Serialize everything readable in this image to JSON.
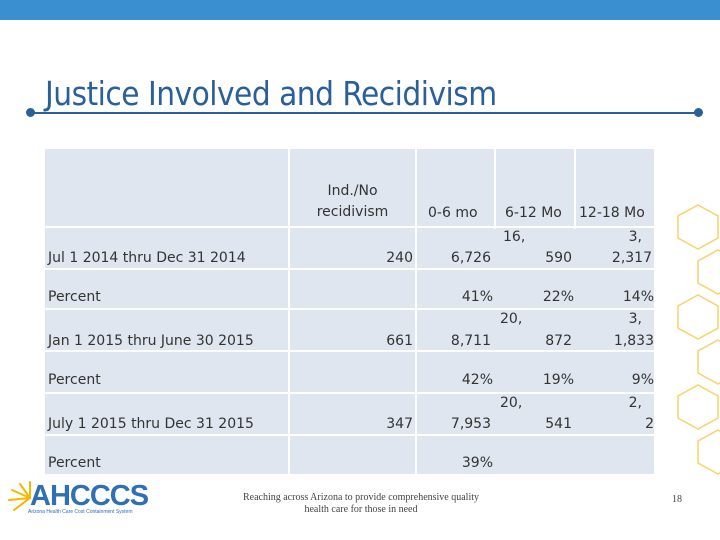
{
  "title": "Justice Involved and Recidivism",
  "table": {
    "headers": [
      "Ind./No recidivism",
      "0-6 mo",
      "6-12 Mo",
      "12-18 Mo"
    ],
    "rows": [
      {
        "label": "Jul 1 2014 thru Dec 31 2014",
        "c1": "240",
        "c2": "6,726",
        "c3a": "16,",
        "c3b": "590",
        "c4a": "3,",
        "c4b": "2,317"
      },
      {
        "label": "Percent",
        "c2": "41%",
        "c3": "22%",
        "c4": "14%"
      },
      {
        "label": "Jan 1 2015 thru June 30 2015",
        "c1": "661",
        "c2": "8,711",
        "c3a": "20,",
        "c3b": "872",
        "c4a": "3,",
        "c4b": "1,833"
      },
      {
        "label": "Percent",
        "c2": "42%",
        "c3": "19%",
        "c4": "9%"
      },
      {
        "label": "July 1 2015 thru Dec 31 2015",
        "c1": "347",
        "c2": "7,953",
        "c3a": "20,",
        "c3b": "541",
        "c4a": "2,",
        "c4b": "2"
      },
      {
        "label": "Percent",
        "c2": "39%"
      }
    ]
  },
  "footer": {
    "text": "Reaching across Arizona to provide comprehensive quality health care for those in need",
    "page": "18"
  },
  "logo": {
    "word": "AHCCCS",
    "sub": "Arizona Health Care Cost Containment System",
    "color": "#2f6fb5",
    "accent": "#f5b800"
  },
  "colors": {
    "topbar": "#3a8fd0",
    "title": "#2a6099",
    "table_bg": "#dfe6ef",
    "decor_hex": "#f7d36b"
  }
}
